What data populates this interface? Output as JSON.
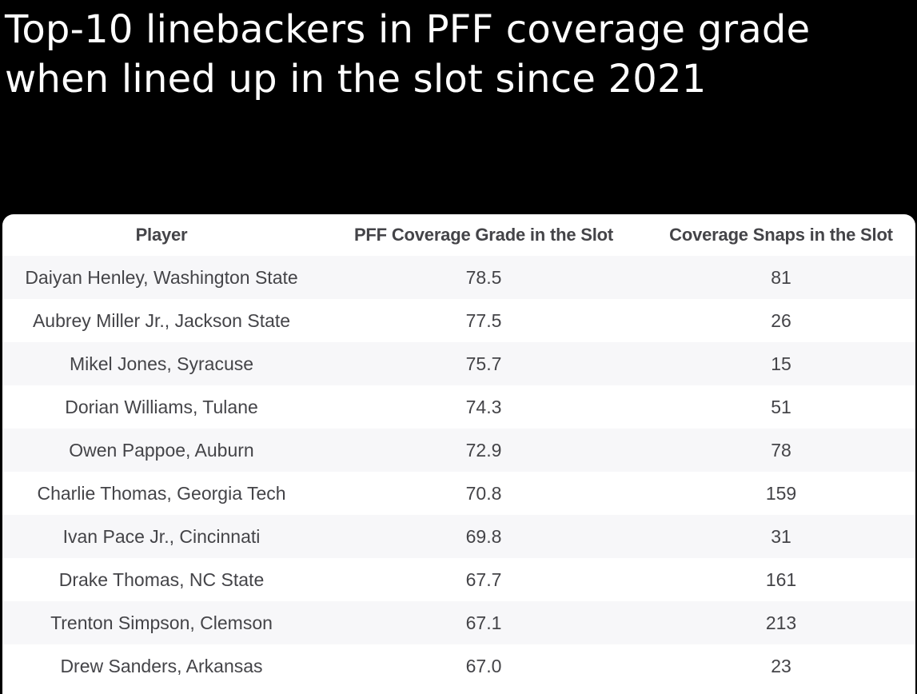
{
  "title": {
    "line1": "Top-10 linebackers in PFF coverage grade",
    "line2": "when lined up in the slot since 2021"
  },
  "table": {
    "headers": [
      "Player",
      "PFF Coverage Grade in the Slot",
      "Coverage Snaps in the Slot"
    ],
    "rows": [
      [
        "Daiyan Henley, Washington State",
        "78.5",
        "81"
      ],
      [
        "Aubrey Miller Jr., Jackson State",
        "77.5",
        "26"
      ],
      [
        "Mikel Jones, Syracuse",
        "75.7",
        "15"
      ],
      [
        "Dorian Williams, Tulane",
        "74.3",
        "51"
      ],
      [
        "Owen Pappoe, Auburn",
        "72.9",
        "78"
      ],
      [
        "Charlie Thomas, Georgia Tech",
        "70.8",
        "159"
      ],
      [
        "Ivan Pace Jr., Cincinnati",
        "69.8",
        "31"
      ],
      [
        "Drake Thomas, NC State",
        "67.7",
        "161"
      ],
      [
        "Trenton Simpson, Clemson",
        "67.1",
        "213"
      ],
      [
        "Drew Sanders, Arkansas",
        "67.0",
        "23"
      ]
    ]
  },
  "colors": {
    "background": "#000000",
    "title_text": "#ffffff",
    "card": "#ffffff",
    "row_stripe": "#f7f7f9",
    "cell_text": "#444448"
  },
  "chart_data": {
    "type": "table",
    "title": "Top-10 linebackers in PFF coverage grade when lined up in the slot since 2021",
    "columns": [
      "Player",
      "PFF Coverage Grade in the Slot",
      "Coverage Snaps in the Slot"
    ],
    "categories": [
      "Daiyan Henley, Washington State",
      "Aubrey Miller Jr., Jackson State",
      "Mikel Jones, Syracuse",
      "Dorian Williams, Tulane",
      "Owen Pappoe, Auburn",
      "Charlie Thomas, Georgia Tech",
      "Ivan Pace Jr., Cincinnati",
      "Drake Thomas, NC State",
      "Trenton Simpson, Clemson",
      "Drew Sanders, Arkansas"
    ],
    "series": [
      {
        "name": "PFF Coverage Grade in the Slot",
        "values": [
          78.5,
          77.5,
          75.7,
          74.3,
          72.9,
          70.8,
          69.8,
          67.7,
          67.1,
          67.0
        ]
      },
      {
        "name": "Coverage Snaps in the Slot",
        "values": [
          81,
          26,
          15,
          51,
          78,
          159,
          31,
          161,
          213,
          23
        ]
      }
    ]
  }
}
